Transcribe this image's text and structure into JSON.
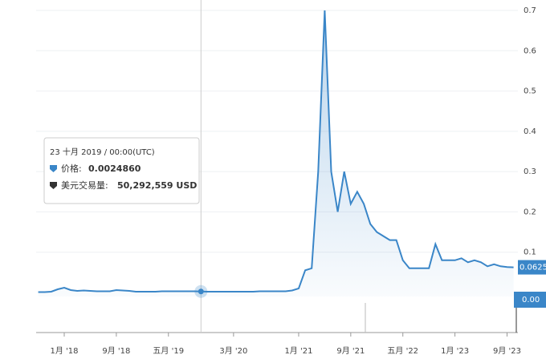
{
  "chart_data": {
    "type": "line",
    "x": [
      "2017-09",
      "2017-10",
      "2017-11",
      "2017-12",
      "2018-01",
      "2018-02",
      "2018-03",
      "2018-04",
      "2018-05",
      "2018-06",
      "2018-07",
      "2018-08",
      "2018-09",
      "2018-10",
      "2018-11",
      "2018-12",
      "2019-01",
      "2019-02",
      "2019-03",
      "2019-04",
      "2019-05",
      "2019-06",
      "2019-07",
      "2019-08",
      "2019-09",
      "2019-10",
      "2019-11",
      "2019-12",
      "2020-01",
      "2020-02",
      "2020-03",
      "2020-04",
      "2020-05",
      "2020-06",
      "2020-07",
      "2020-08",
      "2020-09",
      "2020-10",
      "2020-11",
      "2020-12",
      "2021-01",
      "2021-02",
      "2021-03",
      "2021-04",
      "2021-05",
      "2021-06",
      "2021-07",
      "2021-08",
      "2021-09",
      "2021-10",
      "2021-11",
      "2021-12",
      "2022-01",
      "2022-02",
      "2022-03",
      "2022-04",
      "2022-05",
      "2022-06",
      "2022-07",
      "2022-08",
      "2022-09",
      "2022-10",
      "2022-11",
      "2022-12",
      "2023-01",
      "2023-02",
      "2023-03",
      "2023-04",
      "2023-05",
      "2023-06",
      "2023-07",
      "2023-08",
      "2023-09",
      "2023-10"
    ],
    "series": [
      {
        "name": "价格",
        "color": "#3a86c8",
        "values": [
          0.001,
          0.001,
          0.002,
          0.008,
          0.012,
          0.006,
          0.004,
          0.005,
          0.004,
          0.003,
          0.003,
          0.003,
          0.006,
          0.005,
          0.004,
          0.002,
          0.002,
          0.002,
          0.002,
          0.003,
          0.003,
          0.003,
          0.003,
          0.003,
          0.003,
          0.0025,
          0.002,
          0.002,
          0.002,
          0.002,
          0.002,
          0.002,
          0.002,
          0.002,
          0.003,
          0.003,
          0.003,
          0.003,
          0.003,
          0.005,
          0.01,
          0.055,
          0.06,
          0.3,
          0.7,
          0.3,
          0.2,
          0.3,
          0.22,
          0.25,
          0.22,
          0.17,
          0.15,
          0.14,
          0.13,
          0.13,
          0.08,
          0.06,
          0.06,
          0.06,
          0.06,
          0.12,
          0.08,
          0.08,
          0.08,
          0.085,
          0.075,
          0.08,
          0.075,
          0.065,
          0.07,
          0.065,
          0.063,
          0.0625
        ]
      }
    ],
    "ylim": [
      0,
      0.7
    ],
    "yticks": [
      0.1,
      0.2,
      0.3,
      0.4,
      0.5,
      0.6,
      0.7
    ],
    "xticks": [
      {
        "value": "2018-01",
        "label": "1月 '18"
      },
      {
        "value": "2018-09",
        "label": "9月 '18"
      },
      {
        "value": "2019-05",
        "label": "五月 '19"
      },
      {
        "value": "2020-03",
        "label": "3月 '20"
      },
      {
        "value": "2021-01",
        "label": "1月 '21"
      },
      {
        "value": "2021-09",
        "label": "9月 '21"
      },
      {
        "value": "2022-05",
        "label": "五月 '22"
      },
      {
        "value": "2023-01",
        "label": "1月 '23"
      },
      {
        "value": "2023-09",
        "label": "9月 '23"
      }
    ],
    "grid": true,
    "current_price": {
      "value": 0.0625,
      "label": "0.0625"
    },
    "current_volume": {
      "value": 0,
      "label": "0.00"
    },
    "tooltip": {
      "x": "2019-10",
      "date": "23 十月 2019 / 00:00(UTC)",
      "price_name": "价格:",
      "price": {
        "value": 0.002486,
        "label": "0.0024860"
      },
      "volume_name": "美元交易量:",
      "volume": {
        "value": 50292559,
        "label": "50,292,559 USD"
      }
    }
  }
}
